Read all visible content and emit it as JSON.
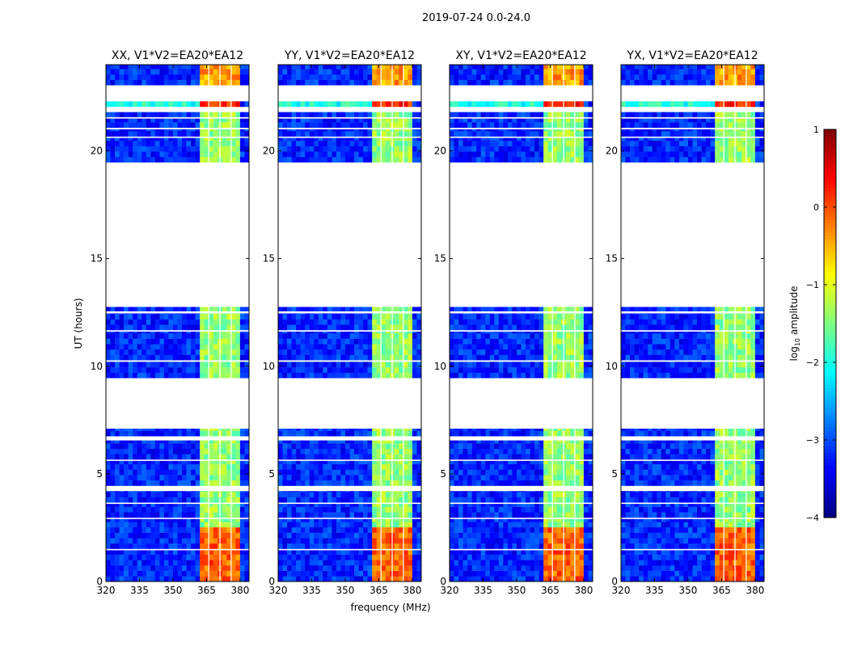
{
  "chart_data": {
    "type": "heatmap",
    "title": "2019-07-24 0.0-24.0",
    "xlabel": "frequency (MHz)",
    "ylabel": "UT (hours)",
    "xlim": [
      320,
      384
    ],
    "ylim": [
      0,
      24
    ],
    "xticks": [
      "320",
      "335",
      "350",
      "365",
      "380"
    ],
    "xtick_values": [
      320,
      335,
      350,
      365,
      380
    ],
    "yticks": [
      "0",
      "5",
      "10",
      "15",
      "20"
    ],
    "ytick_values": [
      0,
      5,
      10,
      15,
      20
    ],
    "panels": [
      {
        "title": "XX, V1*V2=EA20*EA12"
      },
      {
        "title": "YY, V1*V2=EA20*EA12"
      },
      {
        "title": "XY, V1*V2=EA20*EA12"
      },
      {
        "title": "YX, V1*V2=EA20*EA12"
      }
    ],
    "data_segments_hours": [
      [
        0,
        1.45
      ],
      [
        1.52,
        2.9
      ],
      [
        2.97,
        3.6
      ],
      [
        3.67,
        4.2
      ],
      [
        4.45,
        5.6
      ],
      [
        5.67,
        6.55
      ],
      [
        6.75,
        7.1
      ],
      [
        9.45,
        10.2
      ],
      [
        10.28,
        11.6
      ],
      [
        11.68,
        12.45
      ],
      [
        12.55,
        12.75
      ],
      [
        19.47,
        20.6
      ],
      [
        20.67,
        21.0
      ],
      [
        21.08,
        21.5
      ],
      [
        21.57,
        21.8
      ],
      [
        22.05,
        22.3
      ],
      [
        23.05,
        24.0
      ]
    ],
    "background_log_amplitude": -3.2,
    "levels": [
      {
        "t": [
          0,
          24
        ],
        "f": [
          362,
          380
        ],
        "value": -1.4
      },
      {
        "t": [
          0,
          2.6
        ],
        "f": [
          362,
          380
        ],
        "value": -0.1
      },
      {
        "t": [
          22.05,
          22.3
        ],
        "f": [
          320,
          362
        ],
        "value": -2.0
      },
      {
        "t": [
          22.05,
          22.3
        ],
        "f": [
          362,
          380
        ],
        "value": 0.2
      },
      {
        "t": [
          23.05,
          24
        ],
        "f": [
          362,
          380
        ],
        "value": -0.4
      }
    ],
    "channel_gaps_mhz": [
      366,
      371,
      376
    ],
    "colorbar": {
      "label": "log10 amplitude",
      "label_main": "log",
      "label_sub": "10",
      "label_rest": " amplitude",
      "range": [
        -4,
        1
      ],
      "ticks": [
        "1",
        "0",
        "−1",
        "−2",
        "−3",
        "−4"
      ],
      "tick_values": [
        1,
        0,
        -1,
        -2,
        -3,
        -4
      ],
      "colormap": "jet"
    }
  }
}
